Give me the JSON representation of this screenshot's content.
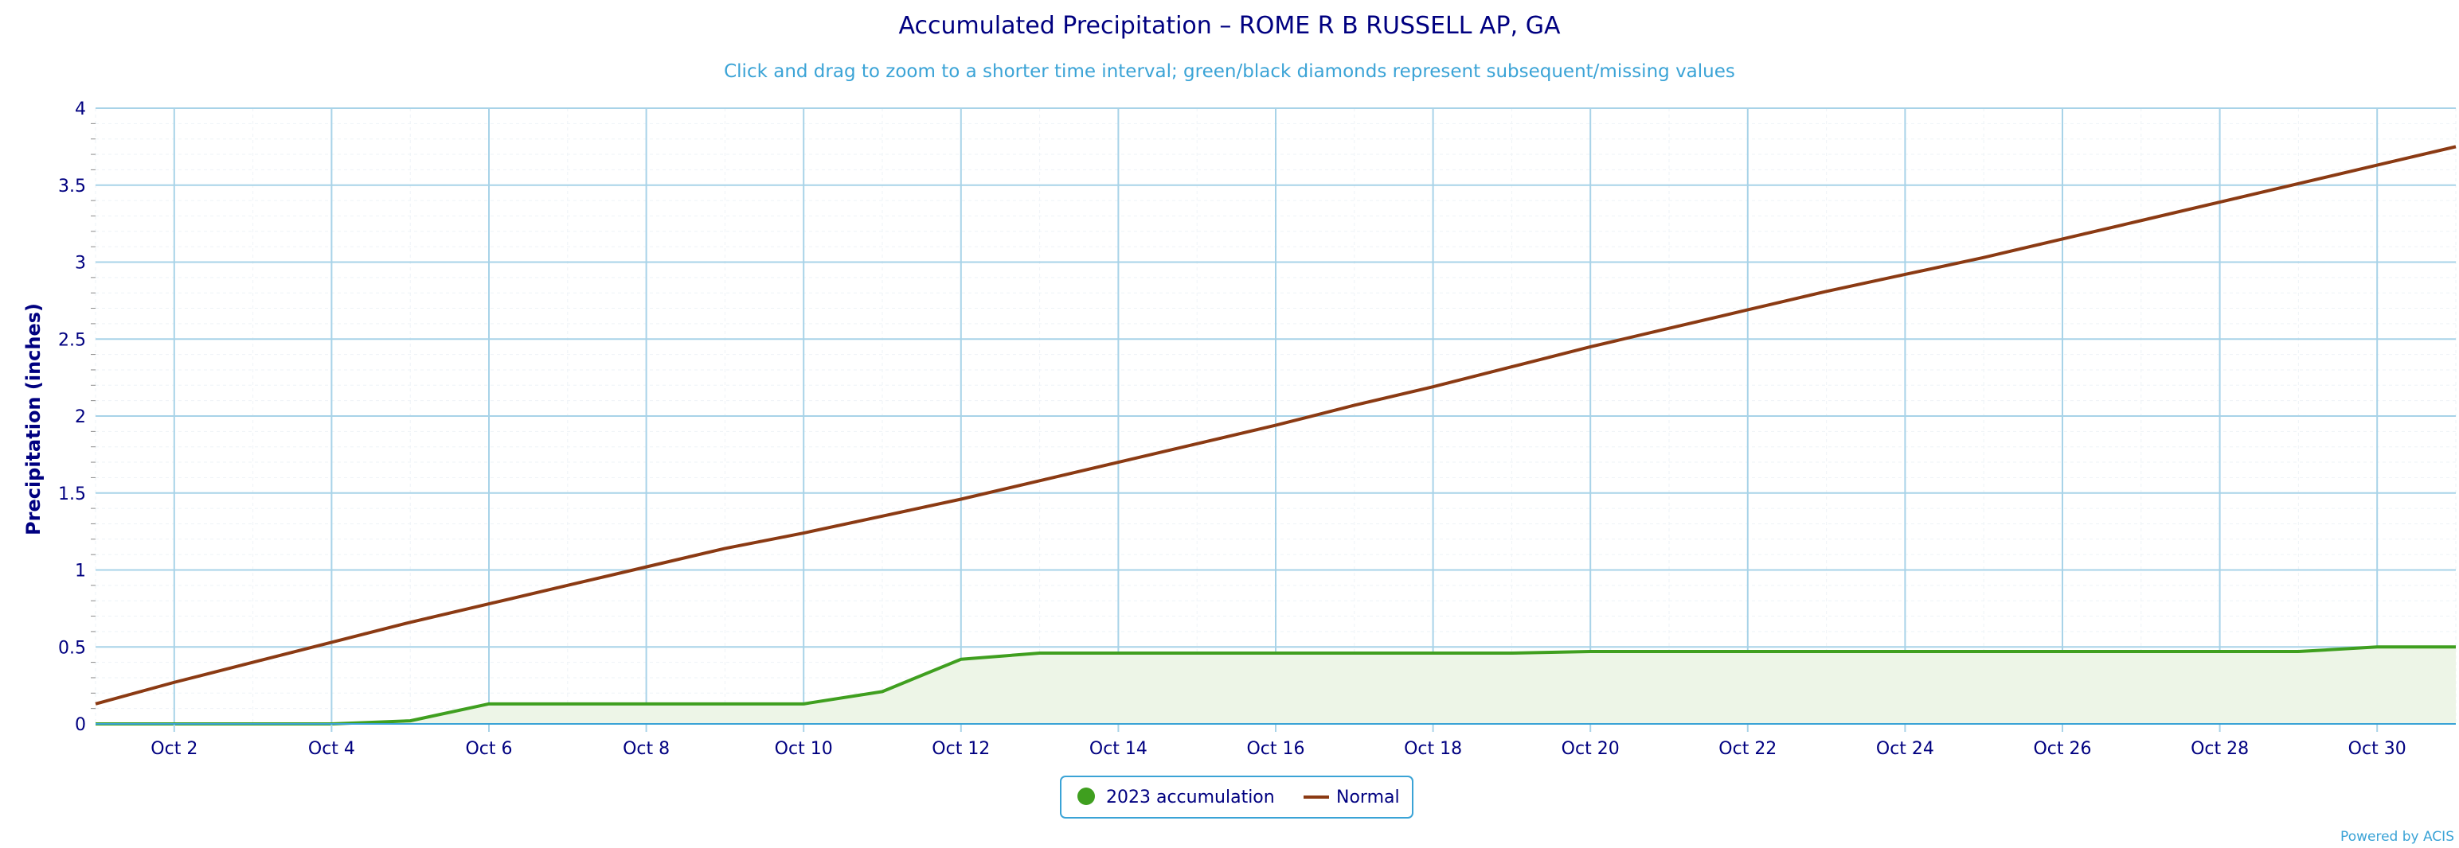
{
  "chart_data": {
    "type": "area",
    "title": "Accumulated Precipitation – ROME R B RUSSELL AP, GA",
    "subtitle": "Click and drag to zoom to a shorter time interval; green/black diamonds represent subsequent/missing values",
    "xlabel": "",
    "ylabel": "Precipitation (inches)",
    "ylim": [
      0,
      4
    ],
    "y_ticks": [
      "0",
      "0.5",
      "1",
      "1.5",
      "2",
      "2.5",
      "3",
      "3.5",
      "4"
    ],
    "x_tick_labels": [
      "Oct 2",
      "Oct 4",
      "Oct 6",
      "Oct 8",
      "Oct 10",
      "Oct 12",
      "Oct 14",
      "Oct 16",
      "Oct 18",
      "Oct 20",
      "Oct 22",
      "Oct 24",
      "Oct 26",
      "Oct 28",
      "Oct 30"
    ],
    "x": [
      "Oct 1",
      "Oct 2",
      "Oct 3",
      "Oct 4",
      "Oct 5",
      "Oct 6",
      "Oct 7",
      "Oct 8",
      "Oct 9",
      "Oct 10",
      "Oct 11",
      "Oct 12",
      "Oct 13",
      "Oct 14",
      "Oct 15",
      "Oct 16",
      "Oct 17",
      "Oct 18",
      "Oct 19",
      "Oct 20",
      "Oct 21",
      "Oct 22",
      "Oct 23",
      "Oct 24",
      "Oct 25",
      "Oct 26",
      "Oct 27",
      "Oct 28",
      "Oct 29",
      "Oct 30",
      "Oct 31"
    ],
    "grid": true,
    "legend": "bottom-center",
    "series": [
      {
        "name": "2023 accumulation",
        "kind": "area",
        "color": "#3f9f1f",
        "fill": "#edf5e7",
        "values": [
          0,
          0,
          0,
          0,
          0.02,
          0.13,
          0.13,
          0.13,
          0.13,
          0.13,
          0.21,
          0.42,
          0.46,
          0.46,
          0.46,
          0.46,
          0.46,
          0.46,
          0.46,
          0.47,
          0.47,
          0.47,
          0.47,
          0.47,
          0.47,
          0.47,
          0.47,
          0.47,
          0.47,
          0.5,
          0.5
        ]
      },
      {
        "name": "Normal",
        "kind": "line",
        "color": "#8b3a13",
        "values": [
          0.13,
          0.27,
          0.4,
          0.53,
          0.66,
          0.78,
          0.9,
          1.02,
          1.14,
          1.24,
          1.35,
          1.46,
          1.58,
          1.7,
          1.82,
          1.94,
          2.07,
          2.19,
          2.32,
          2.45,
          2.57,
          2.69,
          2.81,
          2.92,
          3.03,
          3.15,
          3.27,
          3.39,
          3.51,
          3.63,
          3.75
        ]
      }
    ]
  },
  "credit": "Powered by ACIS"
}
